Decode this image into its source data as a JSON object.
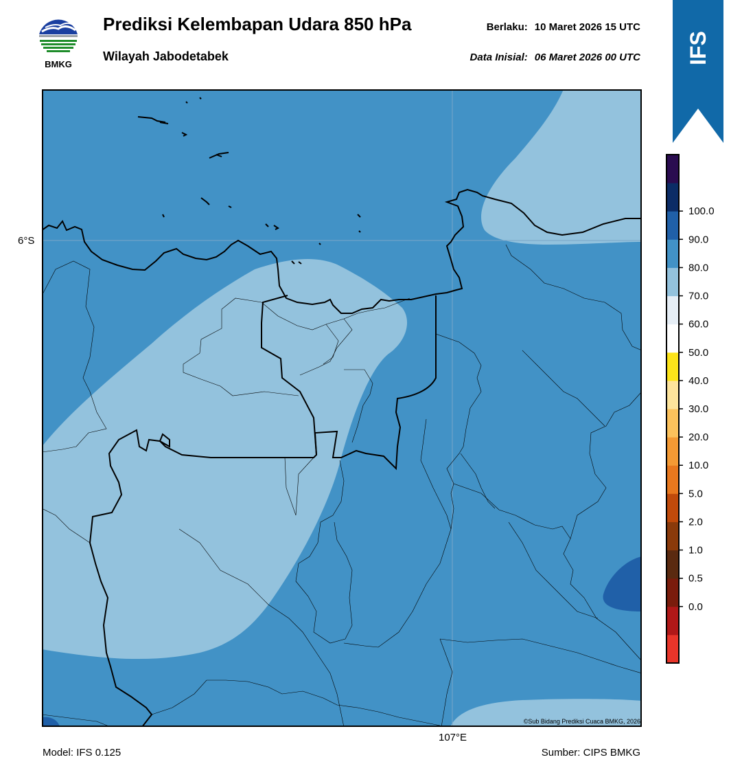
{
  "header": {
    "agency": "BMKG",
    "title": "Prediksi Kelembapan Udara 850 hPa",
    "subtitle": "Wilayah Jabodetabek",
    "valid_label": "Berlaku:",
    "valid_value": "10 Maret 2026 15 UTC",
    "init_label": "Data Inisial:",
    "init_value": "06 Maret 2026 00 UTC"
  },
  "ribbon": {
    "label": "IFS"
  },
  "map": {
    "lat_label": "6°S",
    "lon_label": "107°E",
    "copyright": "©Sub Bidang Prediksi Cuaca BMKG, 2026"
  },
  "footer": {
    "model": "Model: IFS 0.125",
    "source": "Sumber: CIPS BMKG"
  },
  "colorbar": {
    "ticks": [
      "0.0",
      "0.5",
      "1.0",
      "2.0",
      "5.0",
      "10.0",
      "20.0",
      "30.0",
      "40.0",
      "50.0",
      "60.0",
      "70.0",
      "80.0",
      "90.0",
      "100.0"
    ],
    "colors_bottom_to_top": [
      "#e8352a",
      "#b01818",
      "#7a1c0c",
      "#5a2a10",
      "#8a3a0a",
      "#c04a0a",
      "#e8781e",
      "#f49a34",
      "#fcc25c",
      "#fde49c",
      "#fce41a",
      "#ffffff",
      "#e6eef6",
      "#93c2dd",
      "#4292c6",
      "#2060a8",
      "#0b2c66",
      "#2a0c50"
    ]
  },
  "colors": {
    "rh_60_70": "#93c2dd",
    "rh_70_80": "#4292c6",
    "rh_80_90": "#2060a8",
    "ribbon": "#1169a8"
  }
}
